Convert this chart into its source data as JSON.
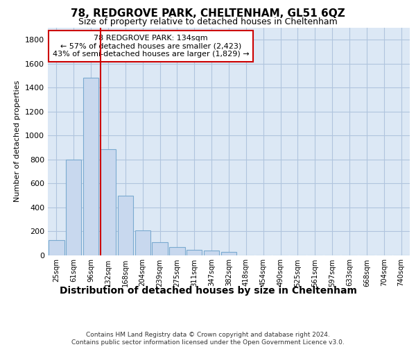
{
  "title": "78, REDGROVE PARK, CHELTENHAM, GL51 6QZ",
  "subtitle": "Size of property relative to detached houses in Cheltenham",
  "xlabel": "Distribution of detached houses by size in Cheltenham",
  "ylabel": "Number of detached properties",
  "categories": [
    "25sqm",
    "61sqm",
    "96sqm",
    "132sqm",
    "168sqm",
    "204sqm",
    "239sqm",
    "275sqm",
    "311sqm",
    "347sqm",
    "382sqm",
    "418sqm",
    "454sqm",
    "490sqm",
    "525sqm",
    "561sqm",
    "597sqm",
    "633sqm",
    "668sqm",
    "704sqm",
    "740sqm"
  ],
  "values": [
    125,
    795,
    1480,
    885,
    495,
    205,
    105,
    65,
    45,
    35,
    25,
    0,
    0,
    0,
    0,
    0,
    0,
    0,
    0,
    0,
    0
  ],
  "bar_color": "#c8d8ee",
  "bar_edge_color": "#7aaad0",
  "vline_color": "#cc0000",
  "annotation_text": "78 REDGROVE PARK: 134sqm\n← 57% of detached houses are smaller (2,423)\n43% of semi-detached houses are larger (1,829) →",
  "annotation_box_color": "white",
  "annotation_box_edge_color": "#cc0000",
  "ylim": [
    0,
    1900
  ],
  "yticks": [
    0,
    200,
    400,
    600,
    800,
    1000,
    1200,
    1400,
    1600,
    1800
  ],
  "footer": "Contains HM Land Registry data © Crown copyright and database right 2024.\nContains public sector information licensed under the Open Government Licence v3.0.",
  "plot_bg_color": "#dce8f5",
  "grid_color": "#b0c4de",
  "title_fontsize": 11,
  "subtitle_fontsize": 9,
  "xlabel_fontsize": 10,
  "ylabel_fontsize": 8
}
